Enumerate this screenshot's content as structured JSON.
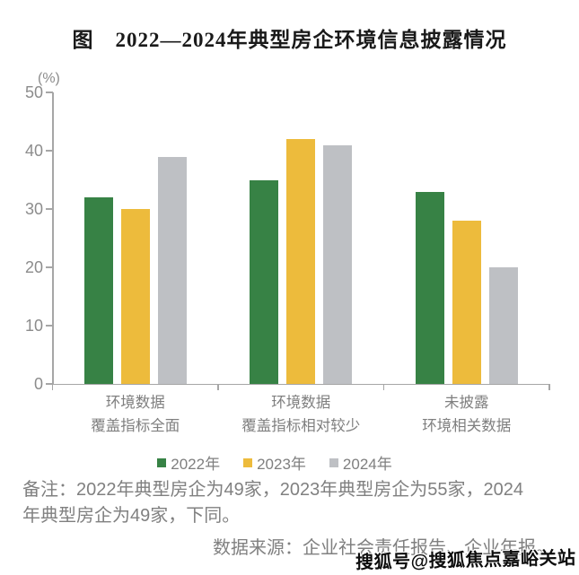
{
  "page": {
    "title": "图　2022—2024年典型房企环境信息披露情况",
    "note": "备注：2022年典型房企为49家，2023年典型房企为55家，2024年典型房企为49家，下同。",
    "source": "数据来源：企业社会责任报告、企业年报。",
    "watermark": "搜狐号@搜狐焦点嘉峪关站"
  },
  "chart_data": {
    "type": "bar",
    "title": "图 2022—2024年典型房企环境信息披露情况",
    "ylabel": "(%)",
    "ylim": [
      0,
      50
    ],
    "yticks": [
      0,
      10,
      20,
      30,
      40,
      50
    ],
    "grid": false,
    "legend_position": "bottom",
    "categories": [
      [
        "环境数据",
        "覆盖指标全面"
      ],
      [
        "环境数据",
        "覆盖指标相对较少"
      ],
      [
        "未披露",
        "环境相关数据"
      ]
    ],
    "series": [
      {
        "name": "2022年",
        "color": "#378245",
        "values": [
          32,
          35,
          33
        ]
      },
      {
        "name": "2023年",
        "color": "#EDBB3C",
        "values": [
          30,
          42,
          28
        ]
      },
      {
        "name": "2024年",
        "color": "#BEC0C4",
        "values": [
          39,
          41,
          20
        ]
      }
    ],
    "axis_color": "#A6A6A6",
    "tick_label_color": "#8C8C8C",
    "category_label_color": "#7F7F7F",
    "legend_text_color": "#7F7F7F"
  }
}
